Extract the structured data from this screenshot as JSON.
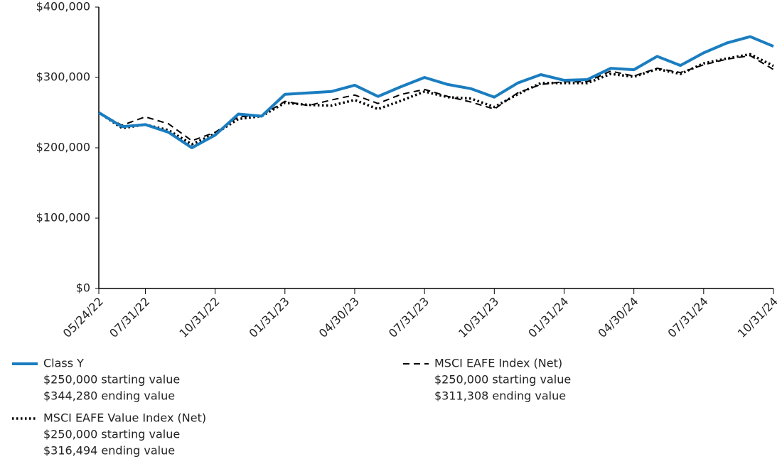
{
  "chart_data": {
    "type": "line",
    "categories": [
      "05/24/22",
      null,
      "07/31/22",
      null,
      null,
      "10/31/22",
      null,
      null,
      "01/31/23",
      null,
      null,
      "04/30/23",
      null,
      null,
      "07/31/23",
      null,
      null,
      "10/31/23",
      null,
      null,
      "01/31/24",
      null,
      null,
      "04/30/24",
      null,
      null,
      "07/31/24",
      null,
      null,
      "10/31/24"
    ],
    "ylim": [
      0,
      400000
    ],
    "yticks": [
      {
        "value": 0,
        "label": "$0"
      },
      {
        "value": 100000,
        "label": "$100,000"
      },
      {
        "value": 200000,
        "label": "$200,000"
      },
      {
        "value": 300000,
        "label": "$300,000"
      },
      {
        "value": 400000,
        "label": "$400,000"
      }
    ],
    "series": [
      {
        "name": "Class Y",
        "color": "#1a7dc0",
        "style": "solid",
        "starting_label": "$250,000 starting value",
        "ending_label": "$344,280 ending value",
        "values": [
          250000,
          230000,
          233000,
          222000,
          200000,
          218000,
          248000,
          245000,
          276000,
          278000,
          280000,
          289000,
          273000,
          287000,
          300000,
          290000,
          284000,
          272000,
          292000,
          304000,
          296000,
          297000,
          313000,
          311000,
          330000,
          317000,
          335000,
          349000,
          358000,
          344280
        ]
      },
      {
        "name": "MSCI EAFE Index (Net)",
        "color": "#000000",
        "style": "dashed",
        "starting_label": "$250,000 starting value",
        "ending_label": "$311,308 ending value",
        "values": [
          250000,
          232000,
          244000,
          234000,
          210000,
          222000,
          244000,
          246000,
          266000,
          260000,
          268000,
          275000,
          263000,
          276000,
          283000,
          273000,
          265000,
          255000,
          278000,
          290000,
          294000,
          294000,
          309000,
          302000,
          313000,
          307000,
          318000,
          326000,
          331000,
          311308
        ]
      },
      {
        "name": "MSCI EAFE Value Index (Net)",
        "color": "#000000",
        "style": "dotted",
        "starting_label": "$250,000 starting value",
        "ending_label": "$316,494 ending value",
        "values": [
          250000,
          228000,
          233000,
          225000,
          205000,
          220000,
          241000,
          245000,
          264000,
          261000,
          260000,
          268000,
          255000,
          267000,
          280000,
          272000,
          270000,
          258000,
          276000,
          292000,
          292000,
          292000,
          305000,
          301000,
          312000,
          305000,
          320000,
          327000,
          333000,
          316494
        ]
      }
    ]
  }
}
